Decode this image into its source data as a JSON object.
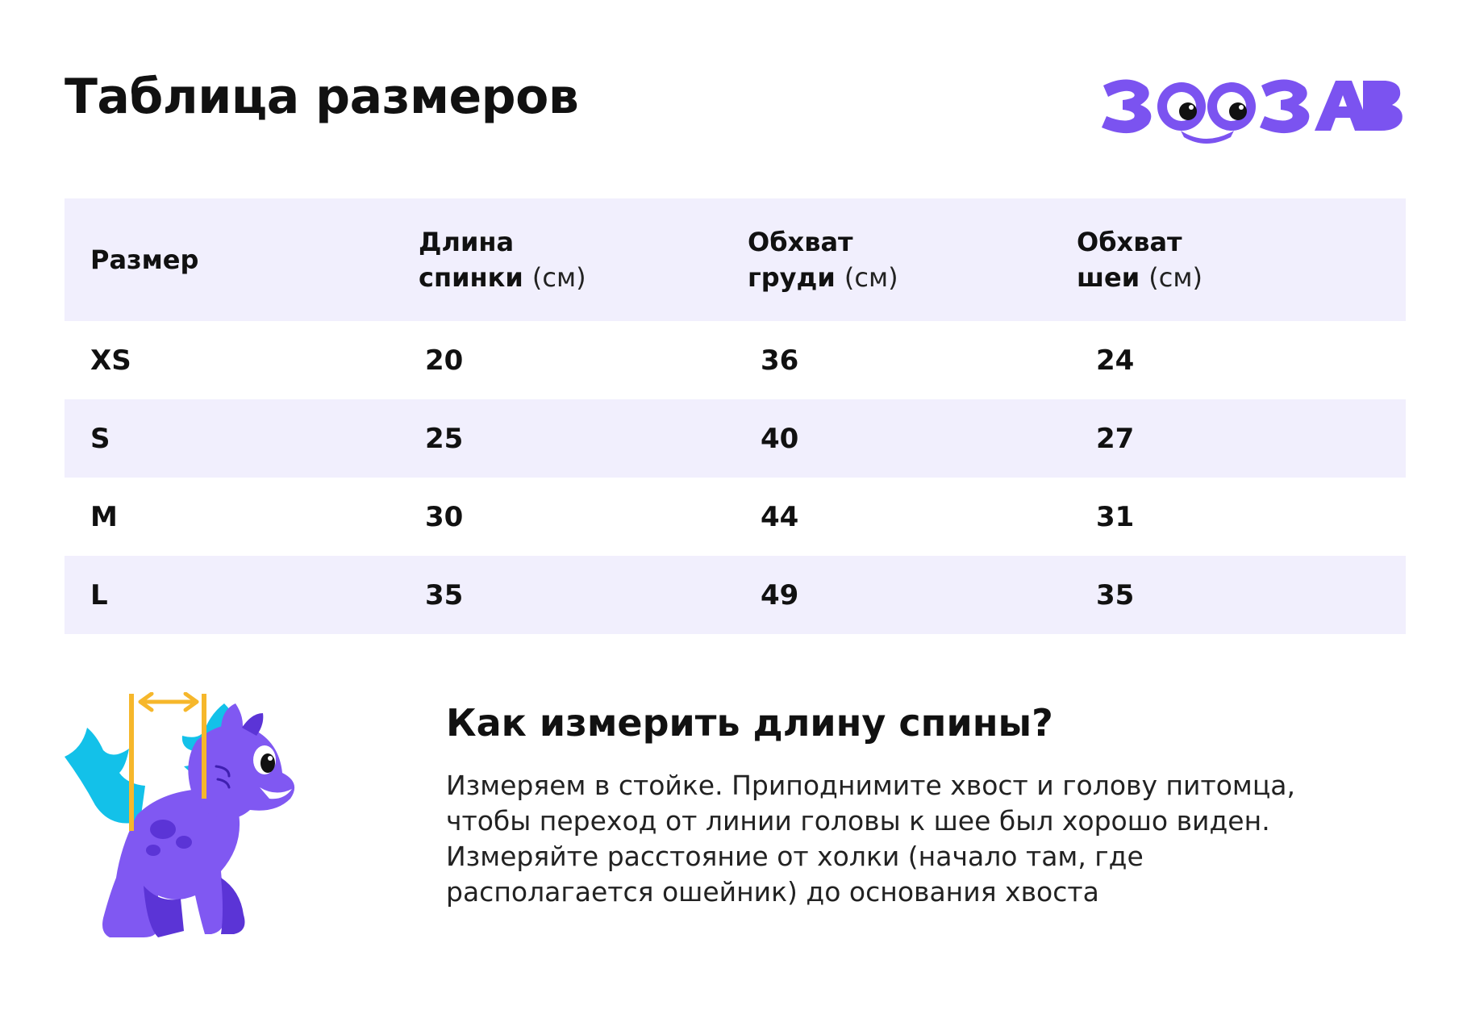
{
  "title": "Таблица размеров",
  "logo": {
    "text": "ЗООЗАВР",
    "color": "#7b53f0"
  },
  "table": {
    "headers": [
      {
        "line1": "Размер",
        "line2": "",
        "unit": ""
      },
      {
        "line1": "Длина",
        "line2": "спинки",
        "unit": "(см)"
      },
      {
        "line1": "Обхват",
        "line2": "груди",
        "unit": "(см)"
      },
      {
        "line1": "Обхват",
        "line2": "шеи",
        "unit": "(см)"
      }
    ],
    "rows": [
      {
        "size": "XS",
        "back": "20",
        "chest": "36",
        "neck": "24"
      },
      {
        "size": "S",
        "back": "25",
        "chest": "40",
        "neck": "27"
      },
      {
        "size": "M",
        "back": "30",
        "chest": "44",
        "neck": "31"
      },
      {
        "size": "L",
        "back": "35",
        "chest": "49",
        "neck": "35"
      }
    ],
    "shade_color": "#f1effd"
  },
  "illustration": {
    "icon": "purple-dog-mascot-icon",
    "measure_icon": "back-length-arrow-icon",
    "accent": "#f6b72b",
    "body_color": "#8058f2",
    "fin_color": "#13c1e9"
  },
  "howto": {
    "title": "Как измерить длину спины?",
    "text": "Измеряем в стойке. Приподнимите хвост и голову питомца, чтобы переход от линии головы к шее был хорошо виден. Измеряйте расстояние от холки (начало там, где располагается ошейник) до основания хвоста"
  }
}
